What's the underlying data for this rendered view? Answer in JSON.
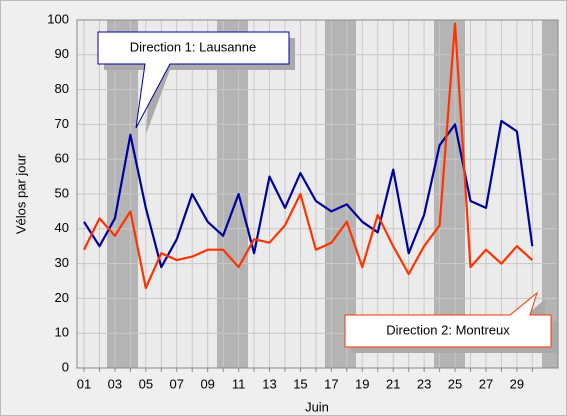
{
  "chart_data": {
    "type": "line",
    "y_label": "Vélos par jour",
    "x_label": "Juin",
    "categories": [
      "01",
      null,
      "03",
      null,
      "05",
      null,
      "07",
      null,
      "09",
      null,
      "11",
      null,
      "13",
      null,
      "15",
      null,
      "17",
      null,
      "19",
      null,
      "21",
      null,
      "23",
      null,
      "25",
      null,
      "27",
      null,
      "29",
      null
    ],
    "series": [
      {
        "name": "Direction 1: Lausanne",
        "color": "#0000a0",
        "values": [
          42,
          35,
          43,
          67,
          46,
          29,
          37,
          50,
          42,
          38,
          50,
          33,
          55,
          46,
          56,
          48,
          45,
          47,
          42,
          39,
          57,
          33,
          44,
          64,
          70,
          48,
          46,
          71,
          68,
          35
        ]
      },
      {
        "name": "Direction 2: Montreux",
        "color": "#ff3300",
        "values": [
          34,
          43,
          38,
          45,
          23,
          33,
          31,
          32,
          34,
          34,
          29,
          37,
          36,
          41,
          50,
          34,
          36,
          42,
          29,
          44,
          35,
          27,
          35,
          41,
          99,
          29,
          34,
          30,
          35,
          31
        ]
      }
    ],
    "ylim": [
      0,
      100
    ],
    "yticks": [
      0,
      10,
      20,
      30,
      40,
      50,
      60,
      70,
      80,
      90,
      100
    ],
    "grid": true
  }
}
